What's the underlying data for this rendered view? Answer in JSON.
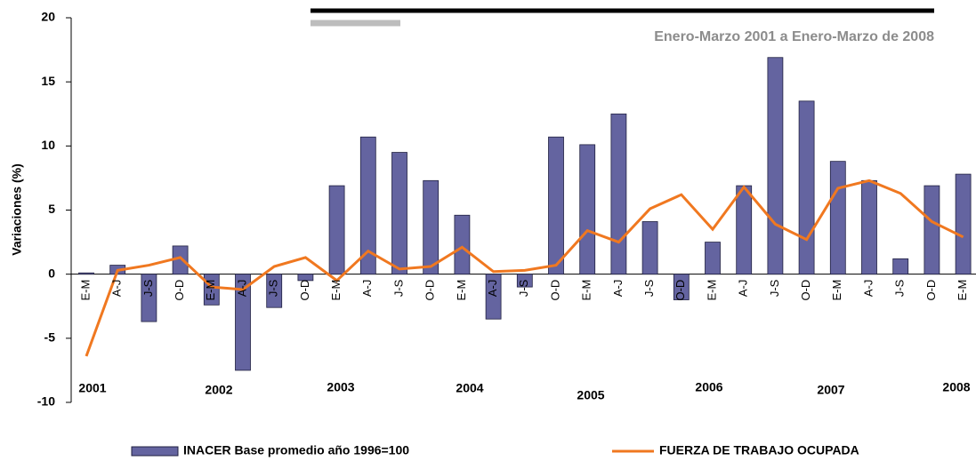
{
  "chart_data": {
    "type": "bar_line",
    "subtitle": "Enero-Marzo 2001 a Enero-Marzo de 2008",
    "y_axis_label": "Variaciones (%)",
    "categories": [
      "E-M",
      "A-J",
      "J-S",
      "O-D",
      "E-M",
      "A-J",
      "J-S",
      "O-D",
      "E-M",
      "A-J",
      "J-S",
      "O-D",
      "E-M",
      "A-J",
      "J-S",
      "O-D",
      "E-M",
      "A-J",
      "J-S",
      "O-D",
      "E-M",
      "A-J",
      "J-S",
      "O-D",
      "E-M",
      "A-J",
      "J-S",
      "O-D",
      "E-M"
    ],
    "year_labels": [
      "2001",
      "2002",
      "2003",
      "2004",
      "2005",
      "2006",
      "2007",
      "2008"
    ],
    "series": [
      {
        "name": "INACER Base promedio año 1996=100",
        "type": "bar",
        "color": "#6464a0",
        "values": [
          0.1,
          0.7,
          -3.7,
          2.2,
          -2.4,
          -7.5,
          -2.6,
          -0.5,
          6.9,
          10.7,
          9.5,
          7.3,
          4.6,
          -3.5,
          -1.0,
          10.7,
          10.1,
          12.5,
          4.1,
          -2.0,
          2.5,
          6.9,
          16.9,
          13.5,
          8.8,
          7.3,
          1.2,
          6.9,
          7.8
        ]
      },
      {
        "name": "FUERZA DE TRABAJO OCUPADA",
        "type": "line",
        "color": "#f07820",
        "values": [
          -6.4,
          0.3,
          0.7,
          1.3,
          -1.0,
          -1.2,
          0.6,
          1.3,
          -0.5,
          1.8,
          0.4,
          0.6,
          2.1,
          0.2,
          0.3,
          0.7,
          3.4,
          2.5,
          5.1,
          6.2,
          3.5,
          6.8,
          3.9,
          2.7,
          6.7,
          7.3,
          6.3,
          4.1,
          2.9
        ]
      }
    ],
    "ylim": [
      -10,
      20
    ],
    "yticks": [
      -10,
      -5,
      0,
      5,
      10,
      15,
      20
    ]
  }
}
